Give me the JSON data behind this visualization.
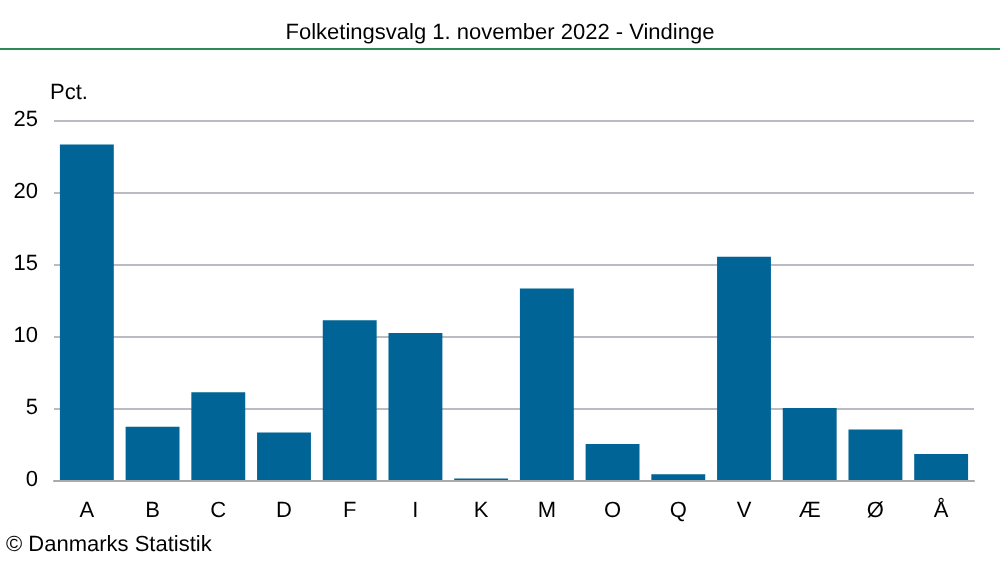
{
  "chart_data": {
    "type": "bar",
    "title": "Folketingsvalg 1. november 2022 - Vindinge",
    "ylabel": "Pct.",
    "categories": [
      "A",
      "B",
      "C",
      "D",
      "F",
      "I",
      "K",
      "M",
      "O",
      "Q",
      "V",
      "Æ",
      "Ø",
      "Å"
    ],
    "values": [
      23.3,
      3.7,
      6.1,
      3.3,
      11.1,
      10.2,
      0.1,
      13.3,
      2.5,
      0.4,
      15.5,
      5.0,
      3.5,
      1.8
    ],
    "color": "#006496",
    "ylim": [
      0,
      25
    ],
    "yticks": [
      0,
      5,
      10,
      15,
      20,
      25
    ],
    "grid": "y",
    "annotations": [
      "© Danmarks Statistik"
    ]
  }
}
